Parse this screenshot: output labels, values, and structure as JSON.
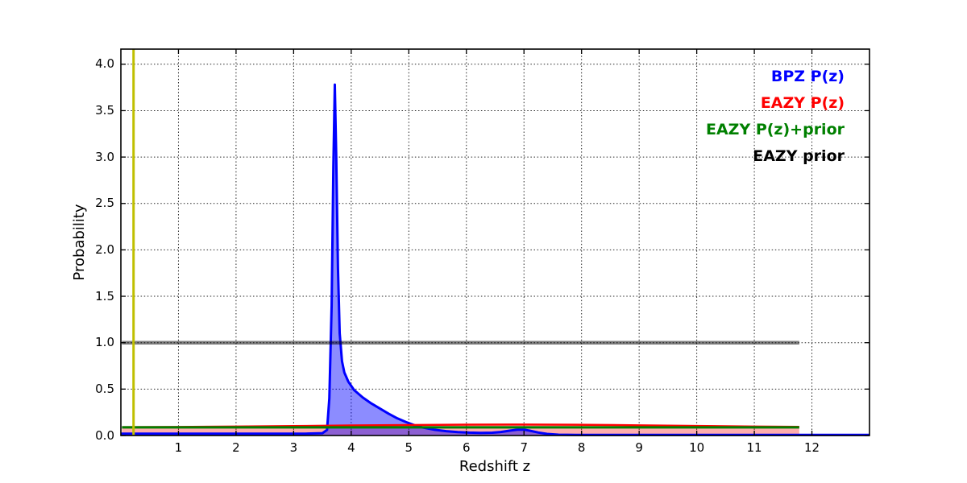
{
  "figure": {
    "xlabel": "Redshift z",
    "ylabel": "Probability",
    "background_color": "#ffffff"
  },
  "legend": {
    "position": "upper right",
    "items": [
      {
        "label": "BPZ P(z)",
        "color": "#0000ff"
      },
      {
        "label": "EAZY P(z)",
        "color": "#ff0000"
      },
      {
        "label": "EAZY P(z)+prior",
        "color": "#008000"
      },
      {
        "label": "EAZY prior",
        "color": "#000000"
      }
    ]
  },
  "chart_data": {
    "type": "line",
    "title": "",
    "xlabel": "Redshift z",
    "ylabel": "Probability",
    "xlim": [
      0,
      13
    ],
    "ylim": [
      0,
      4.163
    ],
    "xticks": [
      1,
      2,
      3,
      4,
      5,
      6,
      7,
      8,
      9,
      10,
      11,
      12
    ],
    "xtick_labels": [
      "1",
      "2",
      "3",
      "4",
      "5",
      "6",
      "7",
      "8",
      "9",
      "10",
      "11",
      "12"
    ],
    "yticks": [
      0.0,
      0.5,
      1.0,
      1.5,
      2.0,
      2.5,
      3.0,
      3.5,
      4.0
    ],
    "ytick_labels": [
      "0.0",
      "0.5",
      "1.0",
      "1.5",
      "2.0",
      "2.5",
      "3.0",
      "3.5",
      "4.0"
    ],
    "grid": "dotted",
    "grid_color": "#000000",
    "axis_color": "#000000",
    "series": [
      {
        "name": "BPZ P(z)",
        "color": "#0000ff",
        "line_width": 3,
        "fill": "rgba(0,0,255,0.45)",
        "points": [
          [
            0,
            0.02
          ],
          [
            3.2,
            0.02
          ],
          [
            3.5,
            0.025
          ],
          [
            3.58,
            0.06
          ],
          [
            3.62,
            0.4
          ],
          [
            3.66,
            1.4
          ],
          [
            3.69,
            2.9
          ],
          [
            3.715,
            3.78
          ],
          [
            3.74,
            3.0
          ],
          [
            3.77,
            1.8
          ],
          [
            3.8,
            1.1
          ],
          [
            3.84,
            0.8
          ],
          [
            3.88,
            0.68
          ],
          [
            3.95,
            0.58
          ],
          [
            4.05,
            0.49
          ],
          [
            4.2,
            0.41
          ],
          [
            4.35,
            0.345
          ],
          [
            4.5,
            0.29
          ],
          [
            4.65,
            0.235
          ],
          [
            4.8,
            0.185
          ],
          [
            4.95,
            0.145
          ],
          [
            5.1,
            0.11
          ],
          [
            5.25,
            0.085
          ],
          [
            5.45,
            0.062
          ],
          [
            5.65,
            0.047
          ],
          [
            5.85,
            0.037
          ],
          [
            6.05,
            0.031
          ],
          [
            6.25,
            0.028
          ],
          [
            6.45,
            0.03
          ],
          [
            6.6,
            0.038
          ],
          [
            6.75,
            0.052
          ],
          [
            6.9,
            0.064
          ],
          [
            7.0,
            0.063
          ],
          [
            7.1,
            0.052
          ],
          [
            7.25,
            0.032
          ],
          [
            7.4,
            0.017
          ],
          [
            7.6,
            0.009
          ],
          [
            7.9,
            0.006
          ],
          [
            13,
            0.006
          ]
        ]
      },
      {
        "name": "EAZY P(z)",
        "color": "#ff0000",
        "line_width": 2.5,
        "fill": "rgba(255,0,0,0.32)",
        "points": [
          [
            0.02,
            0.09
          ],
          [
            1,
            0.092
          ],
          [
            2,
            0.096
          ],
          [
            3,
            0.102
          ],
          [
            4,
            0.108
          ],
          [
            5,
            0.113
          ],
          [
            6,
            0.117
          ],
          [
            7,
            0.118
          ],
          [
            7.9,
            0.116
          ],
          [
            9,
            0.11
          ],
          [
            10,
            0.103
          ],
          [
            11,
            0.097
          ],
          [
            11.78,
            0.093
          ]
        ]
      },
      {
        "name": "EAZY P(z)+prior",
        "color": "#008000",
        "line_width": 3,
        "fill": null,
        "points": [
          [
            0.02,
            0.088
          ],
          [
            11.78,
            0.088
          ]
        ]
      },
      {
        "name": "EAZY prior",
        "color": "rgba(0,0,0,0.5)",
        "line_width": 4.5,
        "fill": null,
        "points": [
          [
            0.02,
            1.0
          ],
          [
            11.78,
            1.0
          ]
        ]
      }
    ],
    "vlines": [
      {
        "x": 0.22,
        "color": "#bfbf00",
        "line_width": 3
      }
    ]
  }
}
